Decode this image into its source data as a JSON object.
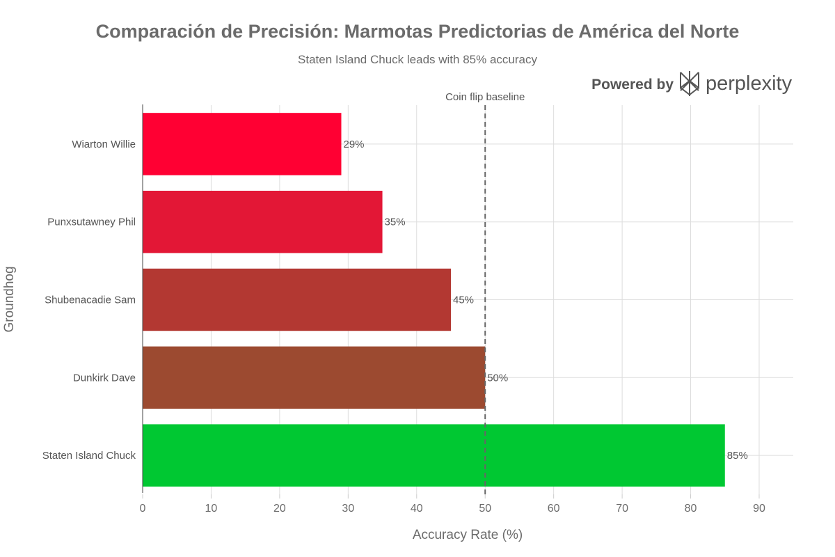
{
  "chart_data": {
    "type": "bar",
    "orientation": "horizontal",
    "title": "Comparación de Precisión: Marmotas Predictorias de América del Norte",
    "subtitle": "Staten Island Chuck leads with 85% accuracy",
    "xlabel": "Accuracy Rate (%)",
    "ylabel": "Groundhog",
    "xlim": [
      0,
      95
    ],
    "xticks": [
      0,
      10,
      20,
      30,
      40,
      50,
      60,
      70,
      80,
      90
    ],
    "grid": true,
    "categories": [
      "Wiarton Willie",
      "Punxsutawney Phil",
      "Shubenacadie Sam",
      "Dunkirk Dave",
      "Staten Island Chuck"
    ],
    "values": [
      29,
      35,
      45,
      50,
      85
    ],
    "data_labels": [
      "29%",
      "35%",
      "45%",
      "50%",
      "85%"
    ],
    "colors": [
      "#FF0033",
      "#E31736",
      "#B33832",
      "#9C4A30",
      "#00C832"
    ],
    "reference_line": {
      "x": 50,
      "label": "Coin flip baseline",
      "style": "dashed",
      "color": "#666666"
    }
  },
  "branding": {
    "prefix": "Powered by",
    "name": "perplexity",
    "logo_icon": "perplexity-logo-icon"
  }
}
